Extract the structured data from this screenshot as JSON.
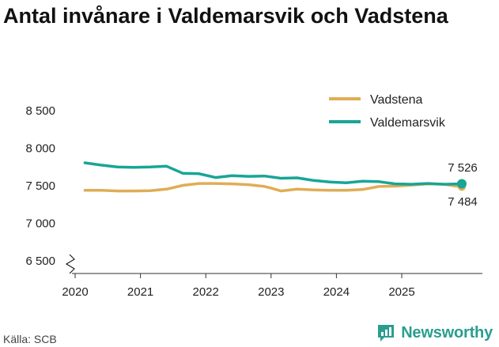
{
  "title": "Antal invånare i Valdemarsvik och Vadstena",
  "source": "Källa: SCB",
  "brand": "Newsworthy",
  "colors": {
    "vadstena": "#e0ad55",
    "valdemarsvik": "#18a596",
    "axis": "#333333",
    "brand": "#2a9d8f"
  },
  "chart_data": {
    "type": "line",
    "title": "Antal invånare i Valdemarsvik och Vadstena",
    "xlabel": "",
    "ylabel": "",
    "xlim": [
      2020,
      2026.2
    ],
    "ylim": [
      6500,
      8500
    ],
    "y_ticks": [
      6500,
      7000,
      7500,
      8000,
      8500
    ],
    "y_tick_labels": [
      "6 500",
      "7 000",
      "7 500",
      "8 000",
      "8 500"
    ],
    "x_ticks": [
      2020,
      2021,
      2022,
      2023,
      2024,
      2025
    ],
    "x_tick_labels": [
      "2020",
      "2021",
      "2022",
      "2023",
      "2024",
      "2025"
    ],
    "legend": [
      "Vadstena",
      "Valdemarsvik"
    ],
    "legend_position": "top-right",
    "series": [
      {
        "name": "Vadstena",
        "color_key": "vadstena",
        "x": [
          2020.15,
          2020.4,
          2020.65,
          2020.9,
          2021.15,
          2021.4,
          2021.65,
          2021.9,
          2022.15,
          2022.4,
          2022.65,
          2022.9,
          2023.0,
          2023.15,
          2023.4,
          2023.65,
          2023.9,
          2024.15,
          2024.4,
          2024.65,
          2024.9,
          2025.15,
          2025.4,
          2025.65,
          2025.92
        ],
        "values": [
          7440,
          7440,
          7430,
          7430,
          7435,
          7455,
          7505,
          7530,
          7530,
          7525,
          7515,
          7490,
          7470,
          7430,
          7455,
          7445,
          7440,
          7440,
          7450,
          7490,
          7495,
          7510,
          7525,
          7520,
          7484
        ],
        "end_label": "7 484"
      },
      {
        "name": "Valdemarsvik",
        "color_key": "valdemarsvik",
        "x": [
          2020.15,
          2020.4,
          2020.65,
          2020.9,
          2021.15,
          2021.4,
          2021.65,
          2021.9,
          2022.15,
          2022.4,
          2022.65,
          2022.9,
          2023.15,
          2023.4,
          2023.65,
          2023.9,
          2024.15,
          2024.4,
          2024.65,
          2024.9,
          2025.15,
          2025.4,
          2025.65,
          2025.92
        ],
        "values": [
          7805,
          7775,
          7750,
          7745,
          7750,
          7760,
          7665,
          7660,
          7610,
          7635,
          7625,
          7630,
          7600,
          7605,
          7570,
          7550,
          7540,
          7560,
          7555,
          7525,
          7520,
          7530,
          7520,
          7526
        ],
        "end_label": "7 526"
      }
    ]
  }
}
